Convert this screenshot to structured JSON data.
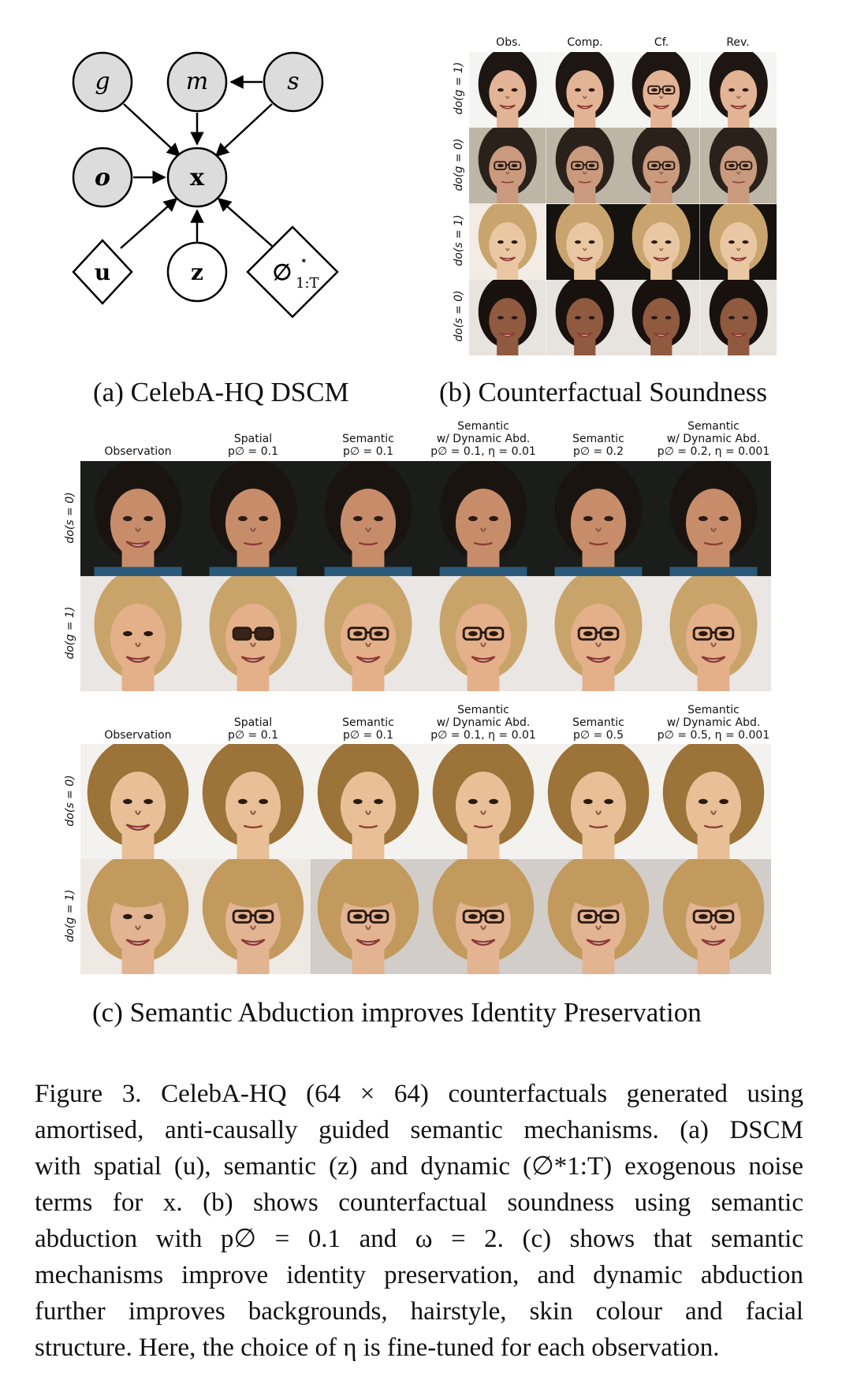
{
  "panel_a": {
    "nodes": {
      "g": "g",
      "m": "m",
      "s": "s",
      "o": "o",
      "x": "x",
      "u": "u",
      "z": "z",
      "phi_main": "∅",
      "phi_sup": "⋆",
      "phi_sub": "1:T"
    },
    "caption": "(a) CelebA-HQ DSCM"
  },
  "panel_b": {
    "columns": [
      "Obs.",
      "Comp.",
      "Cf.",
      "Rev."
    ],
    "rows": [
      "do(g = 1)",
      "do(g = 0)",
      "do(s = 1)",
      "do(s = 0)"
    ],
    "caption": "(b) Counterfactual Soundness"
  },
  "panel_c": {
    "block1": {
      "headers": [
        {
          "l1": "",
          "l2": "",
          "l3": "Observation"
        },
        {
          "l1": "",
          "l2": "Spatial",
          "l3": "p∅ = 0.1"
        },
        {
          "l1": "",
          "l2": "Semantic",
          "l3": "p∅ = 0.1"
        },
        {
          "l1": "Semantic",
          "l2": "w/ Dynamic Abd.",
          "l3": "p∅ = 0.1, η = 0.01"
        },
        {
          "l1": "",
          "l2": "Semantic",
          "l3": "p∅ = 0.2"
        },
        {
          "l1": "Semantic",
          "l2": "w/ Dynamic Abd.",
          "l3": "p∅ = 0.2, η = 0.001"
        }
      ],
      "rows": [
        "do(s = 0)",
        "do(g = 1)"
      ]
    },
    "block2": {
      "headers": [
        {
          "l1": "",
          "l2": "",
          "l3": "Observation"
        },
        {
          "l1": "",
          "l2": "Spatial",
          "l3": "p∅ = 0.1"
        },
        {
          "l1": "",
          "l2": "Semantic",
          "l3": "p∅ = 0.1"
        },
        {
          "l1": "Semantic",
          "l2": "w/ Dynamic Abd.",
          "l3": "p∅ = 0.1, η = 0.01"
        },
        {
          "l1": "",
          "l2": "Semantic",
          "l3": "p∅ = 0.5"
        },
        {
          "l1": "Semantic",
          "l2": "w/ Dynamic Abd.",
          "l3": "p∅ = 0.5, η = 0.001"
        }
      ],
      "rows": [
        "do(s = 0)",
        "do(g = 1)"
      ]
    },
    "caption": "(c) Semantic Abduction improves Identity Preservation"
  },
  "figure_caption": {
    "lines": [
      "Figure 3. CelebA-HQ (64 × 64) counterfactuals generated using",
      "amortised, anti-causally guided semantic mechanisms. (a) DSCM",
      "with spatial (u), semantic (z) and dynamic (∅*1:T) exogenous noise",
      "terms for x. (b) shows counterfactual soundness using semantic",
      "abduction with p∅ = 0.1 and ω = 2. (c) shows that semantic",
      "mechanisms improve identity preservation, and dynamic abduction",
      "further improves backgrounds, hairstyle, skin colour and facial",
      "structure. Here, the choice of η is fine-tuned for each observation."
    ]
  },
  "colors": {
    "node_fill": "#dcdcdc",
    "node_stroke": "#000000",
    "dark_bg": "#1b1d1a",
    "light_bg": "#e9e6e4"
  }
}
